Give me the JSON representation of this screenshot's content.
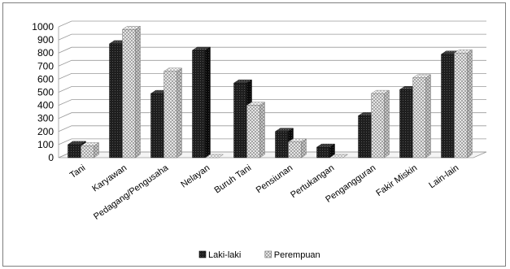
{
  "chart_data": {
    "type": "bar",
    "style": "3d-clustered-column",
    "categories": [
      "Tani",
      "Karyawan",
      "Pedagang/Pengusaha",
      "Nelayan",
      "Buruh Tani",
      "Pensiunan",
      "Pertukangan",
      "Pengangguran",
      "Fakir Miskin",
      "Lain-lain"
    ],
    "series": [
      {
        "name": "Laki-laki",
        "values": [
          100,
          870,
          490,
          820,
          570,
          200,
          80,
          320,
          520,
          790
        ]
      },
      {
        "name": "Perempuan",
        "values": [
          90,
          980,
          660,
          0,
          400,
          120,
          0,
          490,
          610,
          800
        ]
      }
    ],
    "ylim": [
      0,
      1000
    ],
    "yticks": [
      "0",
      "100",
      "200",
      "300",
      "400",
      "500",
      "600",
      "700",
      "800",
      "900",
      "1000"
    ],
    "grid": true,
    "legend_position": "bottom",
    "colors": {
      "Laki-laki": "#151515",
      "Perempuan": "#cfcfcf"
    }
  }
}
